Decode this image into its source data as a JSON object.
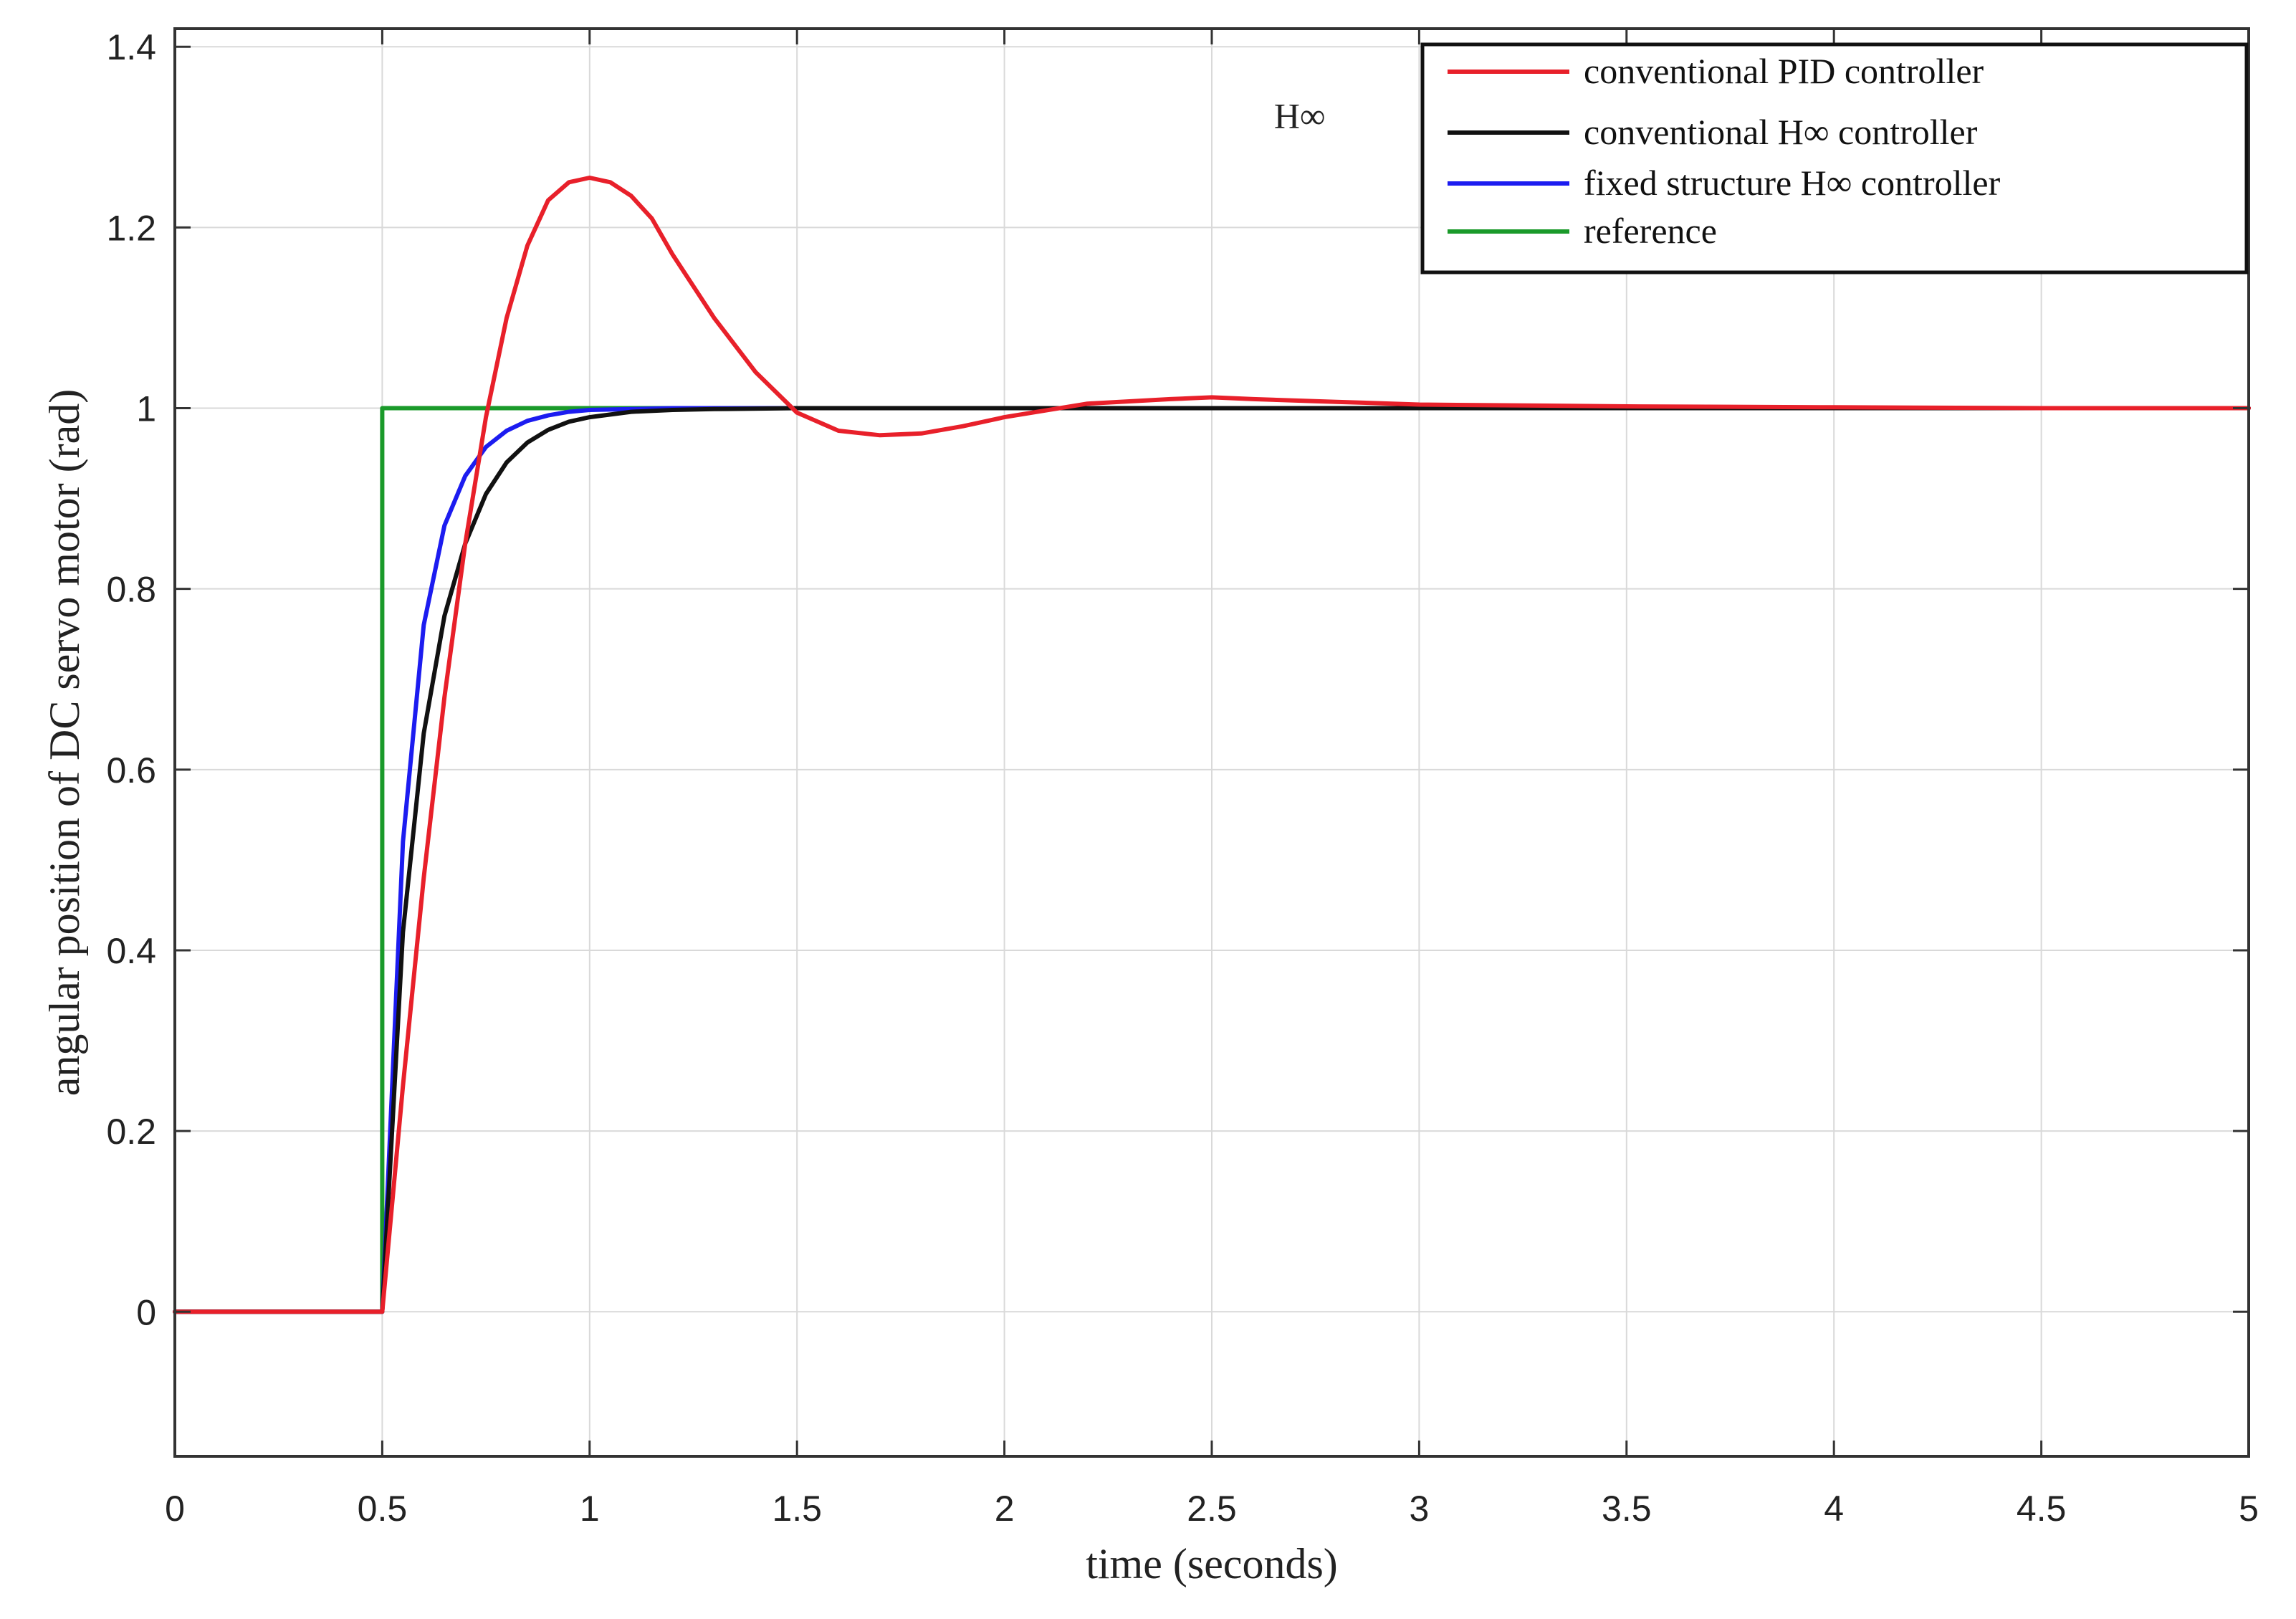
{
  "chart_data": {
    "type": "line",
    "title": "",
    "xlabel": "time (seconds)",
    "ylabel": "angular position of DC servo motor (rad)",
    "xlim": [
      0,
      5
    ],
    "ylim": [
      -0.16,
      1.42
    ],
    "xticks": [
      0,
      0.5,
      1,
      1.5,
      2,
      2.5,
      3,
      3.5,
      4,
      4.5,
      5
    ],
    "yticks": [
      0,
      0.2,
      0.4,
      0.6,
      0.8,
      1,
      1.2,
      1.4
    ],
    "xtick_labels": [
      "0",
      "0.5",
      "1",
      "1.5",
      "2",
      "2.5",
      "3",
      "3.5",
      "4",
      "4.5",
      "5"
    ],
    "ytick_labels": [
      "0",
      "0.2",
      "0.4",
      "0.6",
      "0.8",
      "1",
      "1.2",
      "1.4"
    ],
    "grid": true,
    "legend_position": "top-right",
    "annotation": {
      "text": "H∞",
      "x": 2.65,
      "y": 1.31
    },
    "series": [
      {
        "name": "conventional PID controller",
        "color": "#e8202a",
        "x": [
          0,
          0.5,
          0.55,
          0.6,
          0.65,
          0.7,
          0.75,
          0.8,
          0.85,
          0.9,
          0.95,
          1.0,
          1.05,
          1.1,
          1.15,
          1.2,
          1.3,
          1.4,
          1.5,
          1.6,
          1.7,
          1.8,
          1.9,
          2.0,
          2.2,
          2.4,
          2.5,
          2.6,
          2.8,
          3.0,
          3.5,
          4.0,
          4.5,
          5.0
        ],
        "y": [
          0,
          0,
          0.25,
          0.48,
          0.68,
          0.85,
          0.99,
          1.1,
          1.18,
          1.23,
          1.25,
          1.255,
          1.25,
          1.235,
          1.21,
          1.17,
          1.1,
          1.04,
          0.995,
          0.975,
          0.97,
          0.972,
          0.98,
          0.99,
          1.005,
          1.01,
          1.012,
          1.01,
          1.007,
          1.004,
          1.002,
          1.001,
          1.0,
          1.0
        ]
      },
      {
        "name": "conventional H∞ controller",
        "color": "#111111",
        "x": [
          0,
          0.5,
          0.55,
          0.6,
          0.65,
          0.7,
          0.75,
          0.8,
          0.85,
          0.9,
          0.95,
          1.0,
          1.1,
          1.2,
          1.3,
          1.5,
          2.0,
          3.0,
          4.0,
          5.0
        ],
        "y": [
          0,
          0,
          0.42,
          0.64,
          0.77,
          0.85,
          0.905,
          0.94,
          0.962,
          0.976,
          0.985,
          0.99,
          0.996,
          0.998,
          0.999,
          1.0,
          1.0,
          1.0,
          1.0,
          1.0
        ],
        "label": "conventional H∞ controller"
      },
      {
        "name": "fixed structure H∞ controller",
        "color": "#1c1cf0",
        "x": [
          0,
          0.5,
          0.55,
          0.6,
          0.65,
          0.7,
          0.75,
          0.8,
          0.85,
          0.9,
          0.95,
          1.0,
          1.1,
          1.2,
          1.5,
          2.0,
          3.0,
          4.0,
          5.0
        ],
        "y": [
          0,
          0,
          0.52,
          0.76,
          0.87,
          0.925,
          0.957,
          0.975,
          0.986,
          0.992,
          0.996,
          0.998,
          0.999,
          1.0,
          1.0,
          1.0,
          1.0,
          1.0,
          1.0
        ]
      },
      {
        "name": "reference",
        "color": "#1a9a2a",
        "x": [
          0,
          0.5,
          0.5,
          5.0
        ],
        "y": [
          0,
          0,
          1,
          1
        ]
      }
    ]
  }
}
